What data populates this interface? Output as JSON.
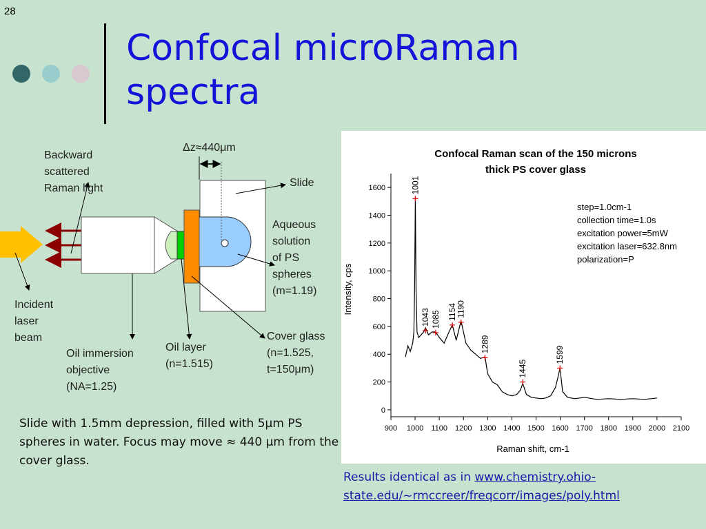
{
  "slide": {
    "number": "28",
    "title": "Confocal microRaman spectra"
  },
  "decor": {
    "dots": [
      "#336666",
      "#99cccc",
      "#d9c8cf"
    ]
  },
  "diagram": {
    "dz_label": "Δz≈440μm",
    "backward_label": "Backward\nscattered\n Raman light",
    "incident_label": "Incident\nlaser\nbeam",
    "objective_label": "Oil immersion\nobjective\n (NA=1.25)",
    "oil_label": "Oil layer\n(n=1.515)",
    "cover_label": "Cover glass\n(n=1.525,\nt=150μm)",
    "slide_label": "Slide",
    "aqueous_label": "Aqueous\nsolution\nof PS\nspheres\n(m=1.19)",
    "colors": {
      "laser": "#ffc000",
      "backscatter": "#8b0000",
      "cover_glass": "#ff8c00",
      "oil": "#00d000",
      "lens": "#ccf0bb",
      "solution": "#99ccff"
    }
  },
  "caption": "Slide with 1.5mm depression, filled with 5μm PS spheres in water. Focus may move ≈ 440 μm from the cover glass.",
  "results": {
    "prefix": "Results identical as in  ",
    "link": "www.chemistry.ohio-state.edu/~rmccreer/freqcorr/images/poly.html"
  },
  "chart_data": {
    "type": "line",
    "title": "Confocal Raman scan of the 150 microns thick PS cover glass",
    "xlabel": "Raman shift, cm-1",
    "ylabel": "Intensity, cps",
    "xlim": [
      900,
      2100
    ],
    "ylim": [
      -50,
      1700
    ],
    "xticks": [
      900,
      1000,
      1100,
      1200,
      1300,
      1400,
      1500,
      1600,
      1700,
      1800,
      1900,
      2000,
      2100
    ],
    "yticks": [
      0,
      200,
      400,
      600,
      800,
      1000,
      1200,
      1400,
      1600
    ],
    "grid": false,
    "annotation": [
      "step=1.0cm-1",
      "collection time=1.0s",
      "excitation power=5mW",
      "excitation laser=632.8nm",
      "polarization=P"
    ],
    "series": [
      {
        "x": [
          960,
          970,
          980,
          990,
          995,
          998,
          1001,
          1004,
          1008,
          1015,
          1025,
          1035,
          1043,
          1055,
          1070,
          1085,
          1100,
          1120,
          1140,
          1154,
          1170,
          1190,
          1210,
          1230,
          1250,
          1270,
          1289,
          1300,
          1320,
          1340,
          1360,
          1380,
          1400,
          1420,
          1435,
          1445,
          1460,
          1480,
          1500,
          1520,
          1540,
          1560,
          1580,
          1590,
          1599,
          1610,
          1630,
          1660,
          1700,
          1750,
          1800,
          1850,
          1900,
          1950,
          2000
        ],
        "y": [
          380,
          460,
          420,
          480,
          560,
          900,
          1520,
          850,
          560,
          520,
          540,
          560,
          590,
          540,
          560,
          560,
          520,
          480,
          560,
          610,
          500,
          640,
          480,
          430,
          400,
          370,
          380,
          260,
          200,
          180,
          130,
          110,
          100,
          110,
          140,
          190,
          110,
          90,
          85,
          80,
          85,
          100,
          160,
          230,
          300,
          130,
          90,
          80,
          90,
          75,
          80,
          75,
          80,
          75,
          85
        ]
      }
    ],
    "peaks": [
      {
        "x": 1001,
        "y": 1520,
        "label": "1001"
      },
      {
        "x": 1043,
        "y": 570,
        "label": "1043"
      },
      {
        "x": 1085,
        "y": 555,
        "label": "1085"
      },
      {
        "x": 1154,
        "y": 610,
        "label": "1154"
      },
      {
        "x": 1190,
        "y": 630,
        "label": "1190"
      },
      {
        "x": 1289,
        "y": 375,
        "label": "1289"
      },
      {
        "x": 1445,
        "y": 200,
        "label": "1445"
      },
      {
        "x": 1599,
        "y": 300,
        "label": "1599"
      }
    ]
  }
}
